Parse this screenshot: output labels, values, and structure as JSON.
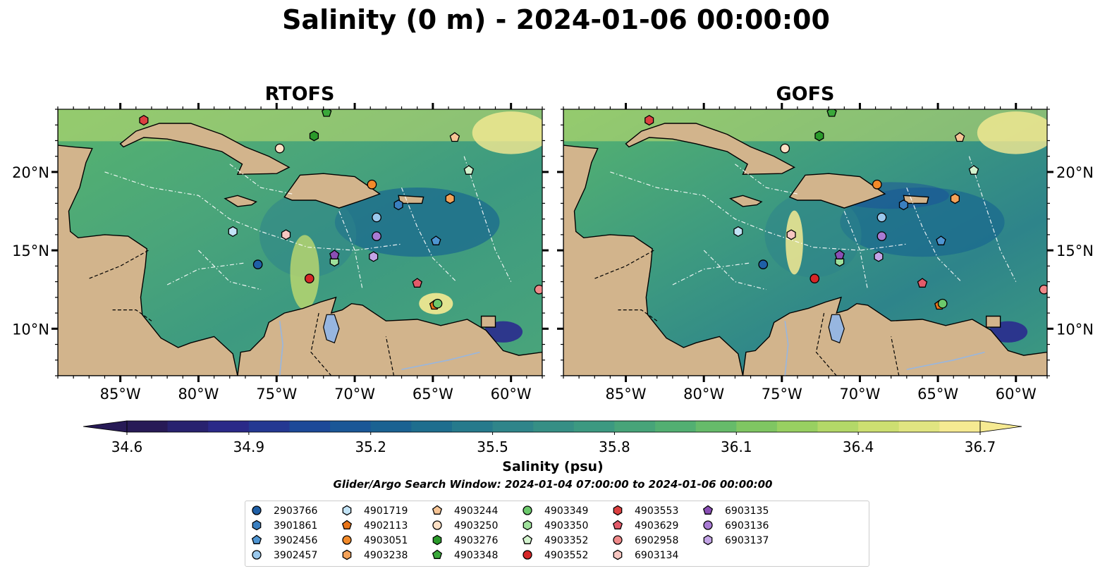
{
  "title": "Salinity (0 m) - 2024-01-06 00:00:00",
  "chart_data": {
    "type": "heatmap",
    "panels": [
      {
        "title": "RTOFS"
      },
      {
        "title": "GOFS"
      }
    ],
    "x_ticks": [
      "85°W",
      "80°W",
      "75°W",
      "70°W",
      "65°W",
      "60°W"
    ],
    "x_tick_values": [
      -85,
      -80,
      -75,
      -70,
      -65,
      -60
    ],
    "y_ticks": [
      "10°N",
      "15°N",
      "20°N"
    ],
    "y_tick_values": [
      10,
      15,
      20
    ],
    "xlim": [
      -89,
      -58
    ],
    "ylim": [
      7,
      24
    ],
    "colorbar": {
      "label": "Salinity (psu)",
      "ticks": [
        "34.6",
        "34.9",
        "35.2",
        "35.5",
        "35.8",
        "36.1",
        "36.4",
        "36.7"
      ],
      "min": 34.6,
      "max": 36.7,
      "extend": "both",
      "colormap": [
        "#271a56",
        "#2a2b8e",
        "#19509a",
        "#1b6a8f",
        "#2e848a",
        "#3d9a80",
        "#56b36f",
        "#8ccc5e",
        "#c8de6d",
        "#f6ea92"
      ]
    },
    "subtitle": "Glider/Argo Search Window: 2024-01-04 07:00:00 to 2024-01-06 00:00:00",
    "land_color": "#d2b48c",
    "platforms": [
      {
        "id": "2903766",
        "marker": "circle",
        "color": "#1f5fa6",
        "lon": -76.2,
        "lat": 14.1
      },
      {
        "id": "3901861",
        "marker": "hexagon",
        "color": "#3a7fc0",
        "lon": -67.2,
        "lat": 17.9
      },
      {
        "id": "3902456",
        "marker": "pentagon",
        "color": "#4f95d2",
        "lon": -64.8,
        "lat": 15.6
      },
      {
        "id": "3902457",
        "marker": "circle",
        "color": "#9ac8ec",
        "lon": -68.6,
        "lat": 17.1
      },
      {
        "id": "4901719",
        "marker": "hexagon",
        "color": "#c2e3f6",
        "lon": -77.8,
        "lat": 16.2
      },
      {
        "id": "4902113",
        "marker": "pentagon",
        "color": "#e8751a",
        "lon": -64.9,
        "lat": 11.5
      },
      {
        "id": "4903051",
        "marker": "circle",
        "color": "#f28a2a",
        "lon": -68.9,
        "lat": 19.2
      },
      {
        "id": "4903238",
        "marker": "hexagon",
        "color": "#f4a259",
        "lon": -63.9,
        "lat": 18.3
      },
      {
        "id": "4903244",
        "marker": "pentagon",
        "color": "#f7c596",
        "lon": -63.6,
        "lat": 22.2
      },
      {
        "id": "4903250",
        "marker": "circle",
        "color": "#fde0c5",
        "lon": -74.8,
        "lat": 21.5
      },
      {
        "id": "4903276",
        "marker": "hexagon",
        "color": "#2a9a2a",
        "lon": -72.6,
        "lat": 22.3
      },
      {
        "id": "4903348",
        "marker": "pentagon",
        "color": "#3aa83a",
        "lon": -71.8,
        "lat": 23.8
      },
      {
        "id": "4903349",
        "marker": "circle",
        "color": "#6cc96c",
        "lon": -64.7,
        "lat": 11.6
      },
      {
        "id": "4903350",
        "marker": "hexagon",
        "color": "#9fe09b",
        "lon": -71.3,
        "lat": 14.3
      },
      {
        "id": "4903352",
        "marker": "pentagon",
        "color": "#d3f3ce",
        "lon": -62.7,
        "lat": 20.1
      },
      {
        "id": "4903552",
        "marker": "circle",
        "color": "#d62728",
        "lon": -72.9,
        "lat": 13.2
      },
      {
        "id": "4903553",
        "marker": "hexagon",
        "color": "#dc4040",
        "lon": -83.5,
        "lat": 23.3
      },
      {
        "id": "4903629",
        "marker": "pentagon",
        "color": "#e35b6a",
        "lon": -66.0,
        "lat": 12.9
      },
      {
        "id": "6902958",
        "marker": "circle",
        "color": "#f08a8a",
        "lon": -58.2,
        "lat": 12.5
      },
      {
        "id": "6903134",
        "marker": "hexagon",
        "color": "#f7c6c1",
        "lon": -74.4,
        "lat": 16.0
      },
      {
        "id": "6903135",
        "marker": "pentagon",
        "color": "#8a4fb5",
        "lon": -71.3,
        "lat": 14.7
      },
      {
        "id": "6903136",
        "marker": "circle",
        "color": "#a97bd4",
        "lon": -68.6,
        "lat": 15.9
      },
      {
        "id": "6903137",
        "marker": "hexagon",
        "color": "#c3a4e6",
        "lon": -68.8,
        "lat": 14.6
      }
    ]
  }
}
